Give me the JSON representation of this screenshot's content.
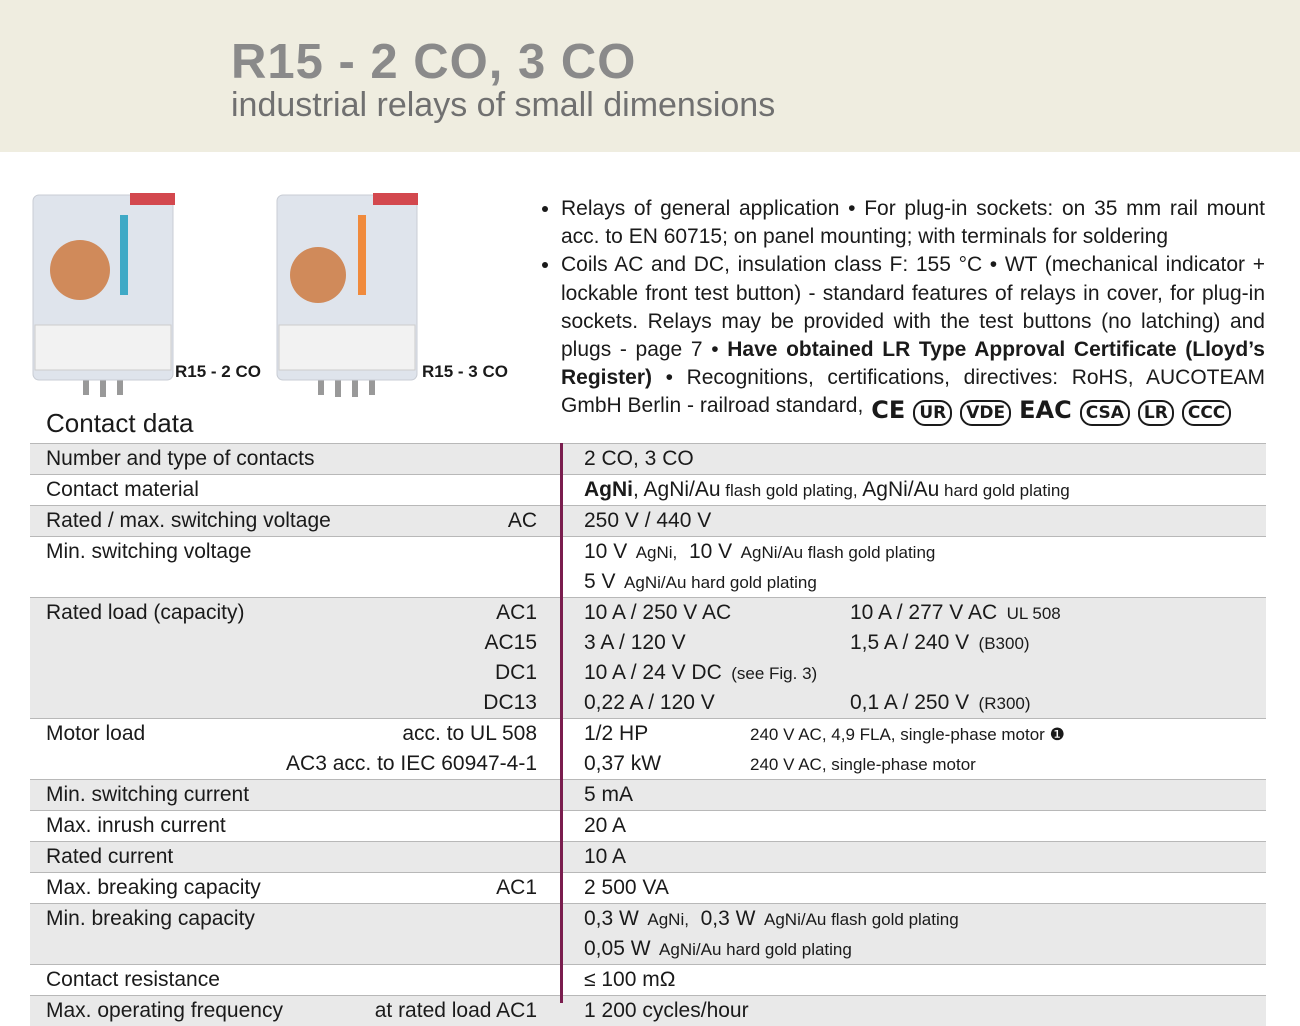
{
  "header": {
    "title": "R15 - 2 CO, 3 CO",
    "subtitle": "industrial relays of small dimensions"
  },
  "products": [
    {
      "caption": "R15 - 2 CO"
    },
    {
      "caption": "R15 - 3 CO"
    }
  ],
  "features": [
    [
      "Relays of general application • For plug-in sockets: on 35 mm rail mount acc. to EN 60715; on panel mounting; with terminals for soldering"
    ],
    [
      "Coils AC and DC, insulation class F: 155 °C • WT (mechanical indicator + lockable front test button) - standard features of relays in cover, for plug-in sockets. Relays may be provided with the test buttons (no latching) and plugs - page 7 • ",
      {
        "text": "Have obtained LR Type Approval Certificate (Lloyd’s Register)",
        "bold": true
      },
      " • Recognitions, certifications, directives: RoHS, AUCOTEAM GmbH Berlin - railroad standard,"
    ]
  ],
  "certifications": [
    "CE",
    "UR",
    "VDE",
    "EAC",
    "CSA",
    "LR",
    "CCC"
  ],
  "section": {
    "title": "Contact data"
  },
  "table": {
    "rows": [
      {
        "label": "Number and type of contacts",
        "lines": [
          {
            "cells": [
              [
                "2 CO, 3 CO"
              ]
            ]
          }
        ]
      },
      {
        "label": "Contact material",
        "lines": [
          {
            "cells": [
              [
                {
                  "text": "AgNi",
                  "bold": true
                },
                ", AgNi/Au",
                {
                  "text": " flash gold plating,",
                  "small": true
                },
                " AgNi/Au",
                {
                  "text": " hard gold plating",
                  "small": true
                }
              ]
            ]
          }
        ]
      },
      {
        "label": "Rated / max. switching voltage",
        "lines": [
          {
            "cond": "AC",
            "cells": [
              [
                "250 V / 440 V"
              ]
            ]
          }
        ]
      },
      {
        "label": "Min. switching voltage",
        "lines": [
          {
            "cells": [
              [
                "10 V",
                {
                  "text": "  AgNi,",
                  "small": true
                },
                "  10 V",
                {
                  "text": "  AgNi/Au flash gold plating",
                  "small": true
                }
              ]
            ]
          },
          {
            "cells": [
              [
                "5 V",
                {
                  "text": "  AgNi/Au hard gold plating",
                  "small": true
                }
              ]
            ]
          }
        ]
      },
      {
        "label": "Rated load (capacity)",
        "lines": [
          {
            "cond": "AC1",
            "cells": [
              [
                "10 A / 250 V AC"
              ],
              [
                "10 A / 277 V AC",
                {
                  "text": "  UL 508",
                  "small": true
                }
              ]
            ]
          },
          {
            "cond": "AC15",
            "cells": [
              [
                "3 A / 120 V"
              ],
              [
                "1,5 A / 240 V",
                {
                  "text": "  (B300)",
                  "small": true
                }
              ]
            ]
          },
          {
            "cond": "DC1",
            "cells": [
              [
                "10 A / 24 V DC",
                {
                  "text": "  (see Fig. 3)",
                  "small": true
                }
              ]
            ]
          },
          {
            "cond": "DC13",
            "cells": [
              [
                "0,22 A / 120 V"
              ],
              [
                "0,1 A / 250 V",
                {
                  "text": "  (R300)",
                  "small": true
                }
              ]
            ]
          }
        ]
      },
      {
        "label": "Motor load",
        "lines": [
          {
            "cond": "acc. to UL 508",
            "cells": [
              [
                "1/2 HP"
              ],
              [
                {
                  "text": "240 V AC, 4,9 FLA, single-phase motor ",
                  "small": true
                },
                {
                  "text": "❶",
                  "small": true
                }
              ]
            ]
          },
          {
            "cond": "AC3 acc. to IEC 60947-4-1",
            "cells": [
              [
                "0,37 kW"
              ],
              [
                {
                  "text": "240 V AC, single-phase motor",
                  "small": true
                }
              ]
            ]
          }
        ]
      },
      {
        "label": "Min. switching current",
        "lines": [
          {
            "cells": [
              [
                "5 mA"
              ]
            ]
          }
        ]
      },
      {
        "label": "Max. inrush current",
        "lines": [
          {
            "cells": [
              [
                "20 A"
              ]
            ]
          }
        ]
      },
      {
        "label": "Rated current",
        "lines": [
          {
            "cells": [
              [
                "10 A"
              ]
            ]
          }
        ]
      },
      {
        "label": "Max. breaking capacity",
        "lines": [
          {
            "cond": "AC1",
            "cells": [
              [
                "2 500 VA"
              ]
            ]
          }
        ]
      },
      {
        "label": "Min. breaking capacity",
        "lines": [
          {
            "cells": [
              [
                "0,3 W",
                {
                  "text": "  AgNi,",
                  "small": true
                },
                "  0,3 W",
                {
                  "text": "  AgNi/Au flash gold plating",
                  "small": true
                }
              ]
            ]
          },
          {
            "cells": [
              [
                "0,05 W",
                {
                  "text": "  AgNi/Au hard gold plating",
                  "small": true
                }
              ]
            ]
          }
        ]
      },
      {
        "label": "Contact resistance",
        "lines": [
          {
            "cells": [
              [
                "≤ 100 mΩ"
              ]
            ]
          }
        ]
      },
      {
        "label": "Max. operating frequency",
        "lines": [
          {
            "cond": "at rated load AC1",
            "cells": [
              [
                "1 200 cycles/hour"
              ]
            ]
          }
        ]
      }
    ]
  }
}
